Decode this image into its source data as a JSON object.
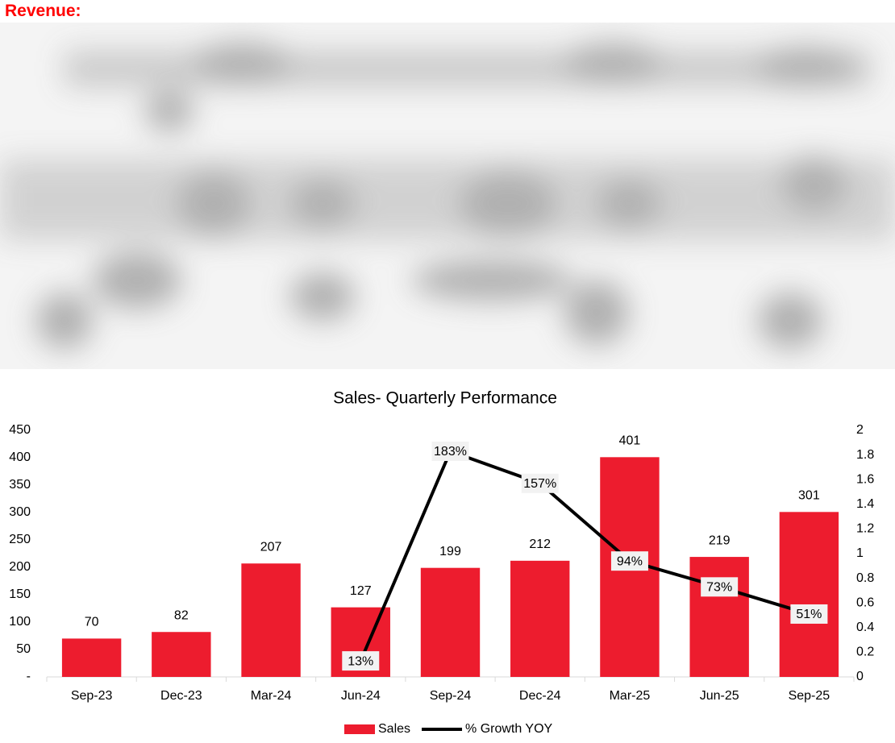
{
  "heading": "Revenue:",
  "chart_data": {
    "type": "bar",
    "title": "Sales- Quarterly Performance",
    "categories": [
      "Sep-23",
      "Dec-23",
      "Mar-24",
      "Jun-24",
      "Sep-24",
      "Dec-24",
      "Mar-25",
      "Jun-25",
      "Sep-25"
    ],
    "series": [
      {
        "name": "Sales",
        "type": "bar",
        "color": "#ed1c2e",
        "values": [
          70,
          82,
          207,
          127,
          199,
          212,
          401,
          219,
          301
        ]
      },
      {
        "name": "% Growth YOY",
        "type": "line",
        "axis": "y2",
        "color": "#000000",
        "values": [
          null,
          null,
          null,
          0.13,
          1.83,
          1.57,
          0.94,
          0.73,
          0.51
        ],
        "value_labels": [
          null,
          null,
          null,
          "13%",
          "183%",
          "157%",
          "94%",
          "73%",
          "51%"
        ]
      }
    ],
    "ylim": [
      0,
      450
    ],
    "yticks": [
      {
        "value": 0,
        "label": "-"
      },
      50,
      100,
      150,
      200,
      250,
      300,
      350,
      400,
      450
    ],
    "y2lim": [
      0,
      2
    ],
    "y2ticks": [
      0,
      0.2,
      0.4,
      0.6,
      0.8,
      1,
      1.2,
      1.4,
      1.6,
      1.8,
      2
    ],
    "legend": "bottom"
  }
}
